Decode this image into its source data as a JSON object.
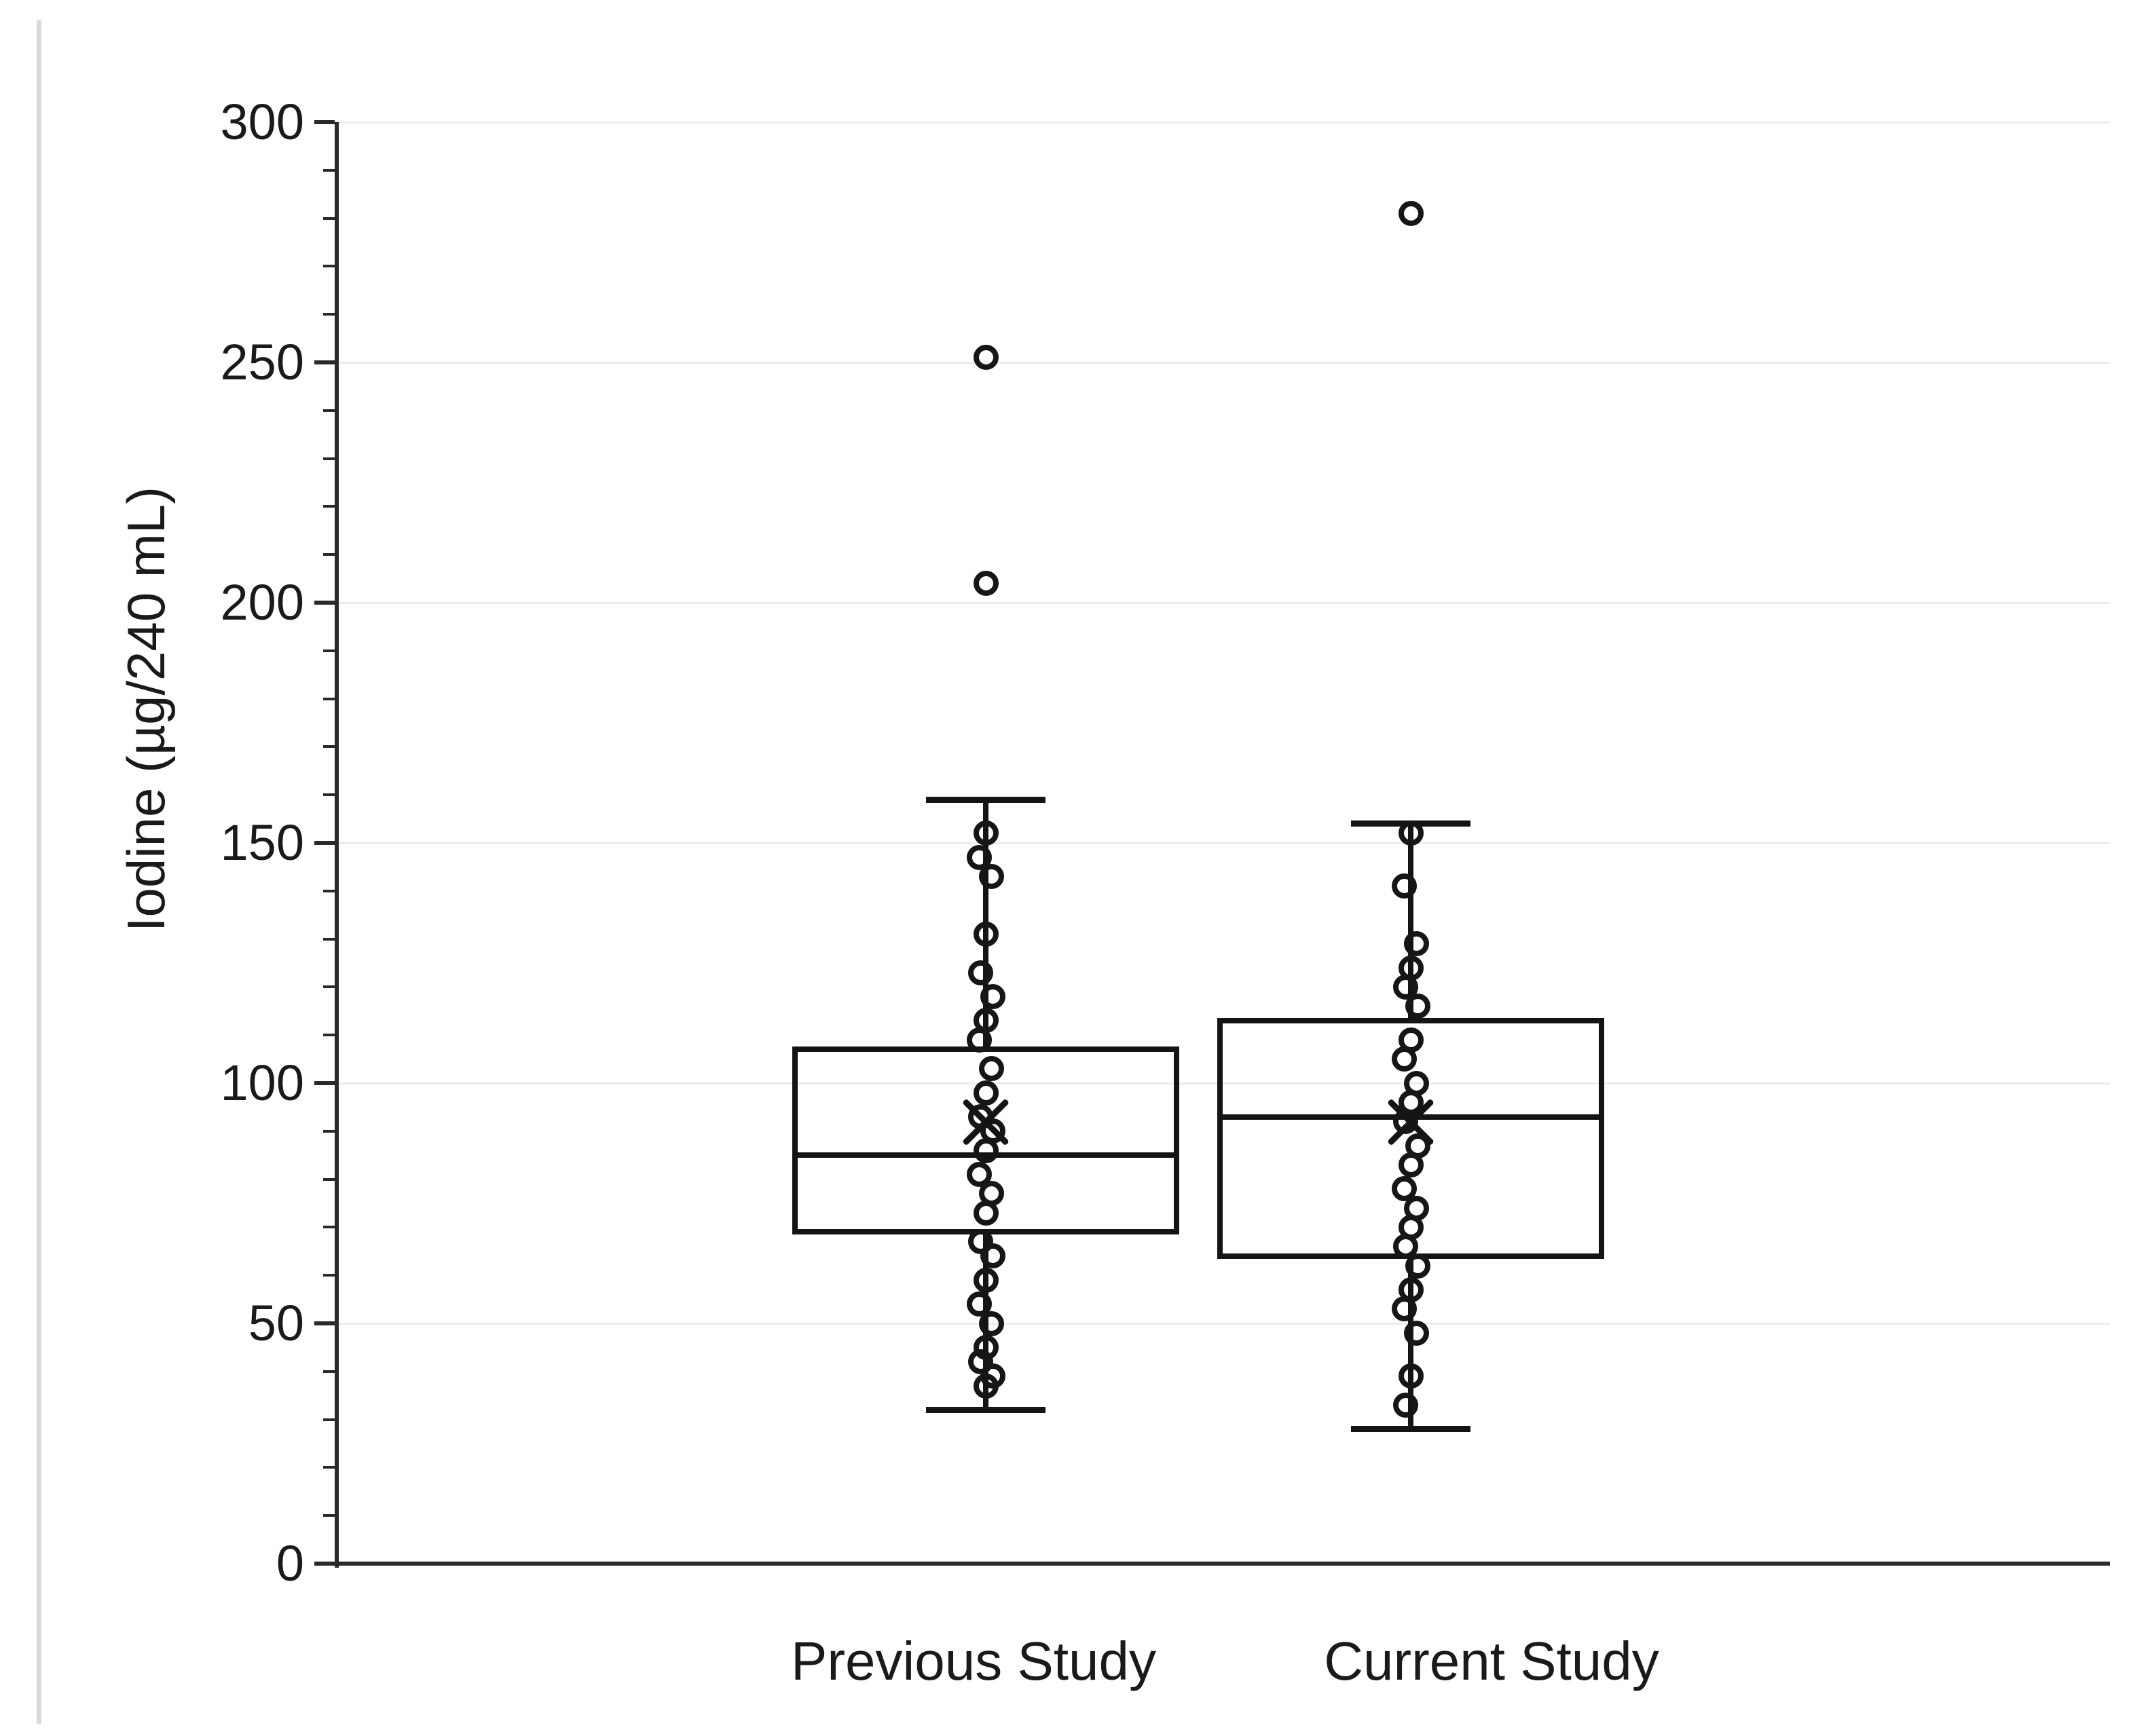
{
  "chart_data": {
    "type": "boxplot",
    "title": "",
    "xlabel": "",
    "ylabel": "Iodine (µg/240 mL)",
    "categories": [
      "Previous Study",
      "Current Study"
    ],
    "ylim": [
      0,
      300
    ],
    "ytick_labels": [
      "300",
      "250",
      "200",
      "150",
      "100",
      "50",
      "0"
    ],
    "ytick_major_step": 50,
    "ytick_minor_step": 10,
    "grid": {
      "horizontal_major_gridlines": true,
      "gridline_color": "#ececec"
    },
    "legend": null,
    "marker_style": {
      "data_point": "open-circle",
      "mean": "x-cross",
      "line_color": "#141414"
    },
    "series": [
      {
        "name": "Previous Study",
        "whisker_low": 32,
        "q1": 69,
        "median": 85,
        "mean": 92,
        "q3": 107,
        "whisker_high": 159,
        "outliers": [
          251,
          204
        ],
        "jitter_points": [
          152,
          147,
          143,
          131,
          123,
          118,
          113,
          109,
          103,
          98,
          93,
          90,
          86,
          81,
          77,
          73,
          67,
          64,
          59,
          54,
          50,
          45,
          42,
          39,
          37
        ]
      },
      {
        "name": "Current Study",
        "whisker_low": 28,
        "q1": 64,
        "median": 93,
        "mean": 92,
        "q3": 113,
        "whisker_high": 154,
        "outliers": [
          281
        ],
        "jitter_points": [
          152,
          141,
          129,
          124,
          120,
          116,
          109,
          105,
          100,
          96,
          92,
          87,
          83,
          78,
          74,
          70,
          66,
          62,
          57,
          53,
          48,
          39,
          33
        ]
      }
    ]
  }
}
